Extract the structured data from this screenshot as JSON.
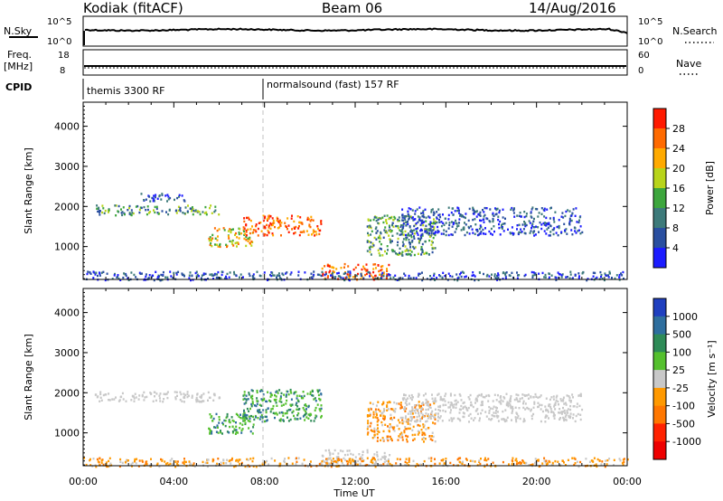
{
  "header": {
    "radar": "Kodiak (fitACF)",
    "beam": "Beam 06",
    "date": "14/Aug/2016"
  },
  "panels": {
    "nsky_label": "N.Sky",
    "nsky_ticks": [
      "10^5",
      "10^0"
    ],
    "nsky_right_ticks": [
      "10^5",
      "10^0"
    ],
    "nsearch_label": "N.Search",
    "freq_label": "Freq.",
    "freq_unit": "[MHz]",
    "freq_ticks": [
      "18",
      "8"
    ],
    "nave_label": "Nave",
    "nave_ticks": [
      "60",
      "0"
    ],
    "cpid_label": "CPID",
    "cpid_segments": [
      "themis 3300 RF",
      "normalsound (fast) 157 RF"
    ]
  },
  "x_axis": {
    "label": "Time UT",
    "ticks": [
      "00:00",
      "04:00",
      "08:00",
      "12:00",
      "16:00",
      "20:00",
      "00:00"
    ]
  },
  "chart_data": [
    {
      "type": "heatmap",
      "variable": "power",
      "ylabel": "Slant Range [km]",
      "ylim": [
        180,
        4600
      ],
      "yticks": [
        1000,
        2000,
        3000,
        4000
      ],
      "xlim_hours": [
        0,
        24
      ],
      "colorbar": {
        "label": "Power [dB]",
        "ticks": [
          "4",
          "8",
          "12",
          "16",
          "20",
          "24",
          "28"
        ],
        "colors": [
          "#1c1cff",
          "#2a4fa0",
          "#3d7a7a",
          "#3da63d",
          "#b8d41a",
          "#ffaa00",
          "#ff6a00",
          "#ff1a00"
        ]
      },
      "echo_regions": [
        {
          "t": [
            0.5,
            6.0
          ],
          "r": [
            1800,
            2050
          ],
          "level": "mid"
        },
        {
          "t": [
            2.5,
            4.5
          ],
          "r": [
            2150,
            2350
          ],
          "level": "low"
        },
        {
          "t": [
            5.5,
            7.5
          ],
          "r": [
            1000,
            1500
          ],
          "level": "high"
        },
        {
          "t": [
            7.0,
            10.5
          ],
          "r": [
            1300,
            1800
          ],
          "level": "peak"
        },
        {
          "t": [
            10.5,
            13.5
          ],
          "r": [
            200,
            600
          ],
          "level": "peak"
        },
        {
          "t": [
            12.5,
            15.5
          ],
          "r": [
            800,
            1800
          ],
          "level": "mid"
        },
        {
          "t": [
            14.0,
            22.0
          ],
          "r": [
            1300,
            2000
          ],
          "level": "low"
        },
        {
          "t": [
            0.0,
            24.0
          ],
          "r": [
            180,
            400
          ],
          "level": "low"
        }
      ]
    },
    {
      "type": "heatmap",
      "variable": "velocity",
      "ylabel": "Slant Range [km]",
      "ylim": [
        180,
        4600
      ],
      "yticks": [
        1000,
        2000,
        3000,
        4000
      ],
      "xlim_hours": [
        0,
        24
      ],
      "colorbar": {
        "label": "Velocity [m s⁻¹]",
        "ticks": [
          "1000",
          "500",
          "100",
          "25",
          "-25",
          "-100",
          "-500",
          "-1000"
        ],
        "colors": [
          "#1f3fbf",
          "#2e6e9e",
          "#2e8b57",
          "#55c02e",
          "#c8c8c8",
          "#ff9900",
          "#ff7700",
          "#ff2200",
          "#ee0000"
        ]
      },
      "echo_regions": [
        {
          "t": [
            0.5,
            6.0
          ],
          "r": [
            1800,
            2050
          ],
          "level": "ground"
        },
        {
          "t": [
            5.5,
            7.5
          ],
          "r": [
            1000,
            1500
          ],
          "level": "pos"
        },
        {
          "t": [
            7.0,
            10.5
          ],
          "r": [
            1300,
            2100
          ],
          "level": "pos"
        },
        {
          "t": [
            10.5,
            13.5
          ],
          "r": [
            200,
            600
          ],
          "level": "ground"
        },
        {
          "t": [
            12.5,
            15.5
          ],
          "r": [
            800,
            1800
          ],
          "level": "neg"
        },
        {
          "t": [
            14.0,
            22.0
          ],
          "r": [
            1300,
            2000
          ],
          "level": "ground"
        },
        {
          "t": [
            0.0,
            24.0
          ],
          "r": [
            180,
            400
          ],
          "level": "neg"
        }
      ]
    }
  ]
}
